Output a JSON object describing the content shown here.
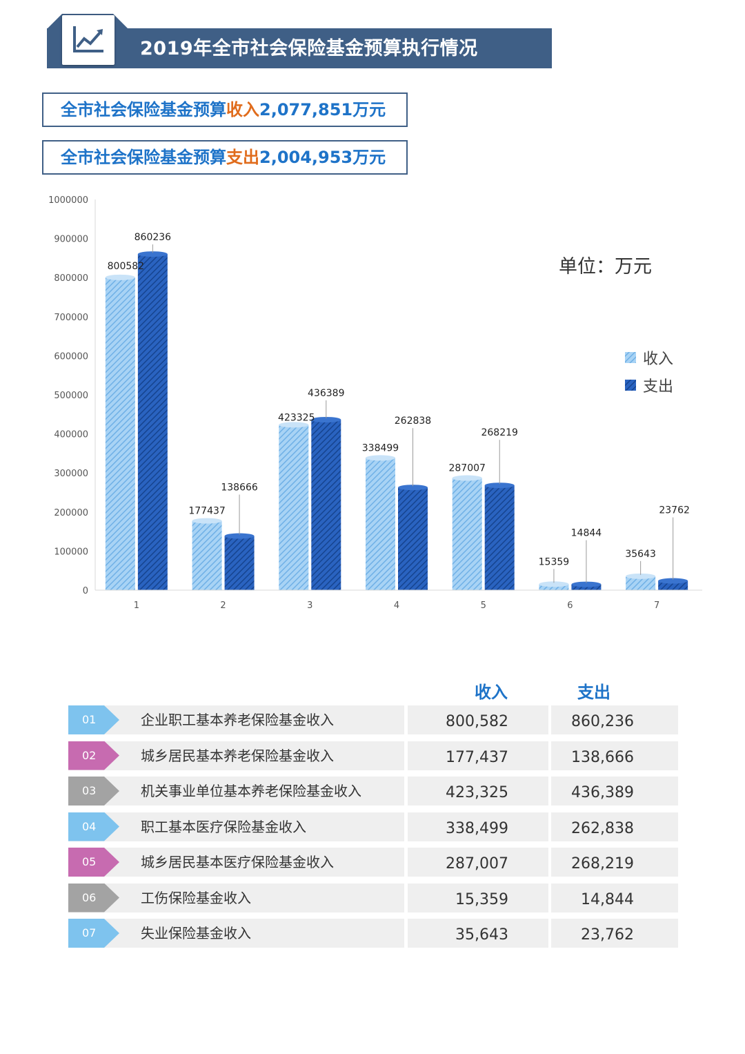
{
  "header": {
    "title": "2019年全市社会保险基金预算执行情况",
    "icon": "line-chart-icon"
  },
  "summary": {
    "income_prefix": "全市社会保险基金预算",
    "income_keyword": "收入",
    "income_value": "2,077,851万元",
    "expense_prefix": "全市社会保险基金预算",
    "expense_keyword": "支出",
    "expense_value": "2,004,953万元"
  },
  "chart_data": {
    "type": "bar",
    "categories": [
      "1",
      "2",
      "3",
      "4",
      "5",
      "6",
      "7"
    ],
    "series": [
      {
        "name": "收入",
        "values": [
          800582,
          177437,
          423325,
          338499,
          287007,
          15359,
          35643
        ],
        "color": "#8fc3ef"
      },
      {
        "name": "支出",
        "values": [
          860236,
          138666,
          436389,
          262838,
          268219,
          14844,
          23762
        ],
        "color": "#1f56b4"
      }
    ],
    "unit_label": "单位：万元",
    "ylim": [
      0,
      1000000
    ],
    "yticks": [
      0,
      100000,
      200000,
      300000,
      400000,
      500000,
      600000,
      700000,
      800000,
      900000,
      1000000
    ],
    "legend_position": "right",
    "grid": false
  },
  "table": {
    "head_income": "收入",
    "head_expense": "支出",
    "rows": [
      {
        "num": "01",
        "name": "企业职工基本养老保险基金收入",
        "income": "800,582",
        "expense": "860,236",
        "tag_color": "#7ec3ee"
      },
      {
        "num": "02",
        "name": "城乡居民基本养老保险基金收入",
        "income": "177,437",
        "expense": "138,666",
        "tag_color": "#c76bb0"
      },
      {
        "num": "03",
        "name": "机关事业单位基本养老保险基金收入",
        "income": "423,325",
        "expense": "436,389",
        "tag_color": "#a3a3a3"
      },
      {
        "num": "04",
        "name": "职工基本医疗保险基金收入",
        "income": "338,499",
        "expense": "262,838",
        "tag_color": "#7ec3ee"
      },
      {
        "num": "05",
        "name": "城乡居民基本医疗保险基金收入",
        "income": "287,007",
        "expense": "268,219",
        "tag_color": "#c76bb0"
      },
      {
        "num": "06",
        "name": "工伤保险基金收入",
        "income": "15,359",
        "expense": "14,844",
        "tag_color": "#a3a3a3"
      },
      {
        "num": "07",
        "name": "失业保险基金收入",
        "income": "35,643",
        "expense": "23,762",
        "tag_color": "#7ec3ee"
      }
    ]
  }
}
